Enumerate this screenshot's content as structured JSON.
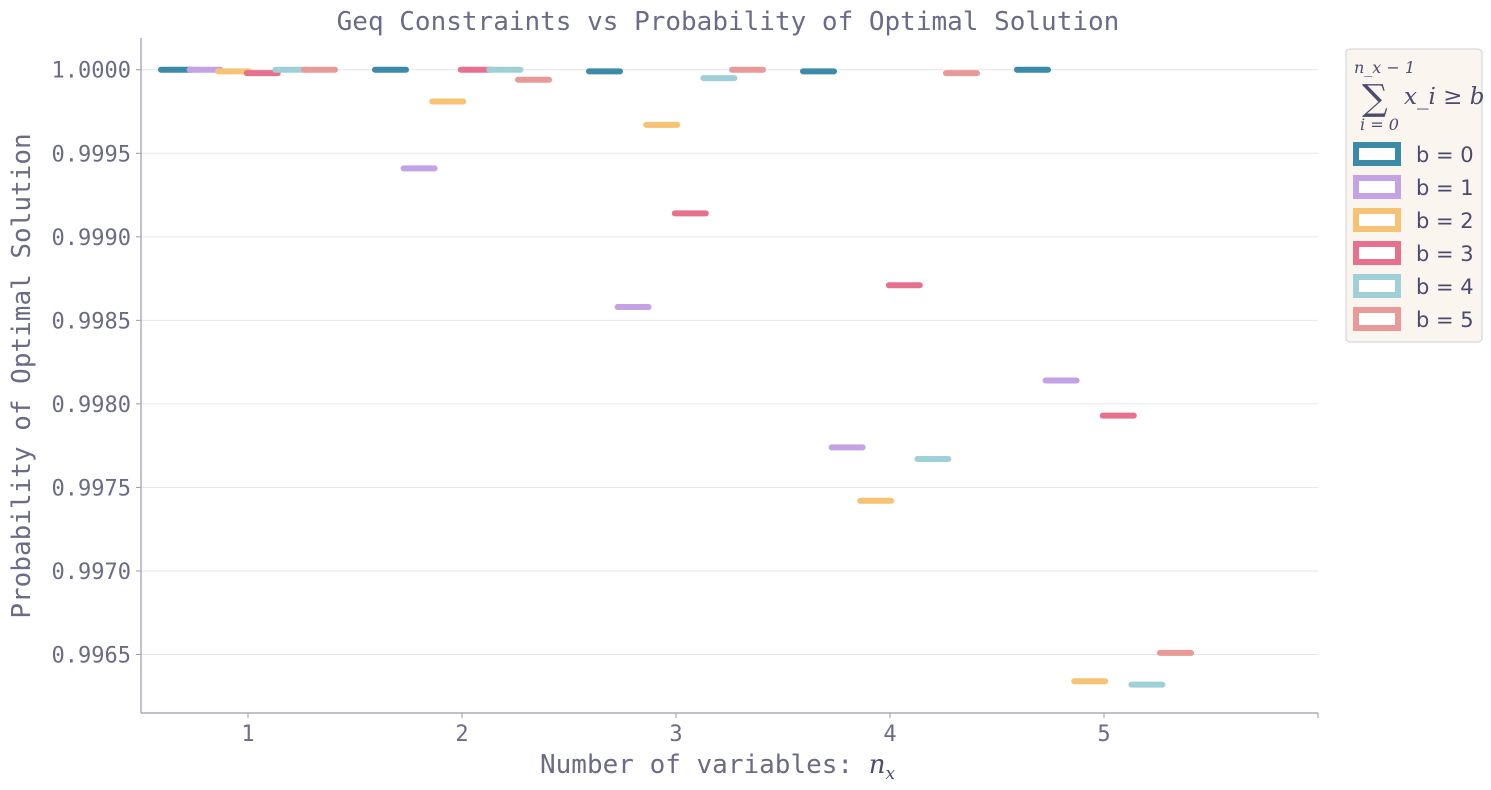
{
  "chart_data": {
    "type": "bar",
    "title": "Geq Constraints vs Probability of Optimal Solution",
    "xlabel": "Number of variables: ",
    "xlabel_math": "n",
    "xlabel_math_sub": "x",
    "ylabel": "Probability of Optimal Solution",
    "categories": [
      "1",
      "2",
      "3",
      "4",
      "5"
    ],
    "ylim": [
      0.99615,
      1.00019
    ],
    "yticks": [
      "0.9965",
      "0.9970",
      "0.9975",
      "0.9980",
      "0.9985",
      "0.9990",
      "0.9995",
      "1.0000"
    ],
    "grid": "horizontal",
    "legend_placement": "outside top-right",
    "legend_title": {
      "upper": "n_x − 1",
      "sigma": "∑",
      "lower": "i = 0",
      "expr": "x_i ≥ b"
    },
    "series": [
      {
        "name": "b = 0",
        "color": "#3a8aa8",
        "values": [
          1.0,
          1.0,
          0.99999,
          0.99999,
          1.0
        ]
      },
      {
        "name": "b = 1",
        "color": "#c3a3e3",
        "values": [
          1.0,
          0.99941,
          0.99858,
          0.99774,
          0.99814
        ]
      },
      {
        "name": "b = 2",
        "color": "#f6c273",
        "values": [
          0.99999,
          0.99981,
          0.99967,
          0.99742,
          0.99634
        ]
      },
      {
        "name": "b = 3",
        "color": "#e8708f",
        "values": [
          0.99998,
          1.0,
          0.99914,
          0.99871,
          0.99793
        ]
      },
      {
        "name": "b = 4",
        "color": "#9fd0d8",
        "values": [
          1.0,
          1.0,
          0.99995,
          0.99767,
          0.99632
        ]
      },
      {
        "name": "b = 5",
        "color": "#e89a96",
        "values": [
          1.0,
          0.99994,
          1.0,
          0.99998,
          0.99651
        ]
      }
    ]
  }
}
